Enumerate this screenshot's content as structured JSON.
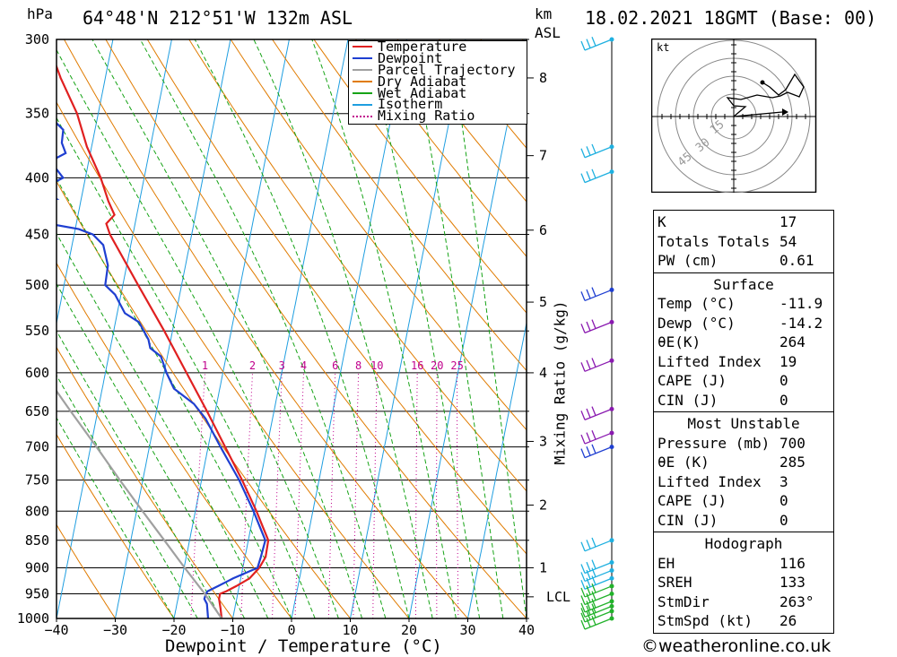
{
  "header": {
    "pressure_unit": "hPa",
    "location": "64°48'N  212°51'W  132m  ASL",
    "km_label": "km",
    "asl_label": "ASL",
    "datetime": "18.02.2021  18GMT  (Base: 00)"
  },
  "footer": "©weatheronline.co.uk",
  "colors": {
    "temperature": "#e02020",
    "dewpoint": "#1f3fd1",
    "parcel": "#a0a0a0",
    "dry_adiabat": "#e07b00",
    "wet_adiabat": "#16a316",
    "isotherm": "#1f9ee0",
    "mixing_ratio": "#c0008c"
  },
  "chart_data": {
    "type": "line",
    "xlabel": "Dewpoint / Temperature (°C)",
    "ylabel": "hPa",
    "x_ticks": [
      "-40",
      "-30",
      "-20",
      "-10",
      "0",
      "10",
      "20",
      "30",
      "40"
    ],
    "y_ticks": [
      "300",
      "350",
      "400",
      "450",
      "500",
      "550",
      "600",
      "650",
      "700",
      "750",
      "800",
      "850",
      "900",
      "950",
      "1000"
    ],
    "xlim": [
      -40,
      40
    ],
    "ylim": [
      1000,
      300
    ],
    "skew_deg_per_decade": 37.5,
    "km_ticks": [
      "1",
      "2",
      "3",
      "4",
      "5",
      "6",
      "7",
      "8"
    ],
    "km_pressures": [
      900,
      790,
      692,
      600,
      518,
      446,
      382,
      325
    ],
    "lcl_label": "LCL",
    "lcl_pressure": 956,
    "mixing_ratio_axis_label": "Mixing Ratio (g/kg)",
    "mixing_ratio_values": [
      "1",
      "2",
      "3",
      "4",
      "6",
      "8",
      "10",
      "16",
      "20",
      "25"
    ],
    "legend": [
      "Temperature",
      "Dewpoint",
      "Parcel Trajectory",
      "Dry Adiabat",
      "Wet Adiabat",
      "Isotherm",
      "Mixing Ratio"
    ],
    "series": [
      {
        "name": "Temperature",
        "points": [
          [
            1000,
            -11.9
          ],
          [
            980,
            -12.4
          ],
          [
            960,
            -13.0
          ],
          [
            950,
            -13.0
          ],
          [
            945,
            -12.0
          ],
          [
            935,
            -10.5
          ],
          [
            920,
            -8.5
          ],
          [
            900,
            -7.2
          ],
          [
            880,
            -6.5
          ],
          [
            850,
            -6.6
          ],
          [
            800,
            -9.6
          ],
          [
            750,
            -13.1
          ],
          [
            700,
            -17.1
          ],
          [
            650,
            -21.4
          ],
          [
            600,
            -26.2
          ],
          [
            550,
            -31.4
          ],
          [
            500,
            -37.4
          ],
          [
            450,
            -43.9
          ],
          [
            440,
            -44.9
          ],
          [
            432,
            -43.8
          ],
          [
            420,
            -45.3
          ],
          [
            400,
            -47.4
          ],
          [
            375,
            -50.8
          ],
          [
            350,
            -53.6
          ],
          [
            325,
            -57.6
          ],
          [
            300,
            -61.3
          ]
        ]
      },
      {
        "name": "Dewpoint",
        "points": [
          [
            1000,
            -14.2
          ],
          [
            970,
            -14.9
          ],
          [
            960,
            -15.5
          ],
          [
            950,
            -15.4
          ],
          [
            945,
            -15.2
          ],
          [
            935,
            -13.6
          ],
          [
            920,
            -11.3
          ],
          [
            900,
            -7.5
          ],
          [
            880,
            -7.3
          ],
          [
            850,
            -7.1
          ],
          [
            800,
            -10.1
          ],
          [
            750,
            -13.6
          ],
          [
            700,
            -17.9
          ],
          [
            660,
            -21.4
          ],
          [
            640,
            -23.9
          ],
          [
            620,
            -27.8
          ],
          [
            600,
            -29.6
          ],
          [
            580,
            -31.1
          ],
          [
            570,
            -33.2
          ],
          [
            560,
            -33.8
          ],
          [
            540,
            -36.0
          ],
          [
            530,
            -38.7
          ],
          [
            510,
            -41.0
          ],
          [
            500,
            -43.0
          ],
          [
            480,
            -43.2
          ],
          [
            460,
            -44.7
          ],
          [
            450,
            -46.8
          ],
          [
            445,
            -49.4
          ],
          [
            435,
            -60.1
          ],
          [
            430,
            -54.3
          ],
          [
            425,
            -62.6
          ],
          [
            418,
            -54.2
          ],
          [
            410,
            -57.4
          ],
          [
            400,
            -53.8
          ],
          [
            392,
            -55.4
          ],
          [
            385,
            -56.0
          ],
          [
            380,
            -54.2
          ],
          [
            372,
            -55.2
          ],
          [
            362,
            -55.4
          ],
          [
            352,
            -58.2
          ],
          [
            348,
            -64.9
          ],
          [
            340,
            -64.1
          ],
          [
            330,
            -63.0
          ],
          [
            318,
            -64.1
          ],
          [
            306,
            -68.1
          ],
          [
            300,
            -75.9
          ]
        ]
      },
      {
        "name": "Parcel Trajectory",
        "points": [
          [
            1000,
            -11.9
          ],
          [
            950,
            -15.6
          ],
          [
            900,
            -19.9
          ],
          [
            850,
            -24.3
          ],
          [
            800,
            -29.0
          ],
          [
            750,
            -33.9
          ],
          [
            700,
            -39.0
          ],
          [
            650,
            -44.6
          ],
          [
            600,
            -50.5
          ],
          [
            550,
            -56.8
          ],
          [
            500,
            -63.8
          ],
          [
            450,
            -71.5
          ]
        ]
      }
    ],
    "hodograph": {
      "unit_label": "kt",
      "ring_labels": [
        "15",
        "30",
        "45"
      ]
    },
    "wind_barb_pressures": [
      300,
      375,
      395,
      505,
      540,
      585,
      647,
      680,
      700,
      850,
      890,
      905,
      920,
      935,
      950,
      965,
      975,
      985,
      1000
    ]
  },
  "indices": {
    "general": [
      {
        "label": "K",
        "value": "17"
      },
      {
        "label": "Totals Totals",
        "value": "54"
      },
      {
        "label": "PW (cm)",
        "value": "0.61"
      }
    ],
    "surface": {
      "title": "Surface",
      "rows": [
        {
          "label": "Temp (°C)",
          "value": "-11.9"
        },
        {
          "label": "Dewp (°C)",
          "value": "-14.2"
        },
        {
          "label": "θE(K)",
          "value": "264"
        },
        {
          "label": "Lifted Index",
          "value": "19"
        },
        {
          "label": "CAPE (J)",
          "value": "0"
        },
        {
          "label": "CIN (J)",
          "value": "0"
        }
      ]
    },
    "most_unstable": {
      "title": "Most Unstable",
      "rows": [
        {
          "label": "Pressure (mb)",
          "value": "700"
        },
        {
          "label": "θE (K)",
          "value": "285"
        },
        {
          "label": "Lifted Index",
          "value": "3"
        },
        {
          "label": "CAPE (J)",
          "value": "0"
        },
        {
          "label": "CIN (J)",
          "value": "0"
        }
      ]
    },
    "hodograph": {
      "title": "Hodograph",
      "rows": [
        {
          "label": "EH",
          "value": "116"
        },
        {
          "label": "SREH",
          "value": "133"
        },
        {
          "label": "StmDir",
          "value": "263°"
        },
        {
          "label": "StmSpd (kt)",
          "value": "26"
        }
      ]
    }
  }
}
